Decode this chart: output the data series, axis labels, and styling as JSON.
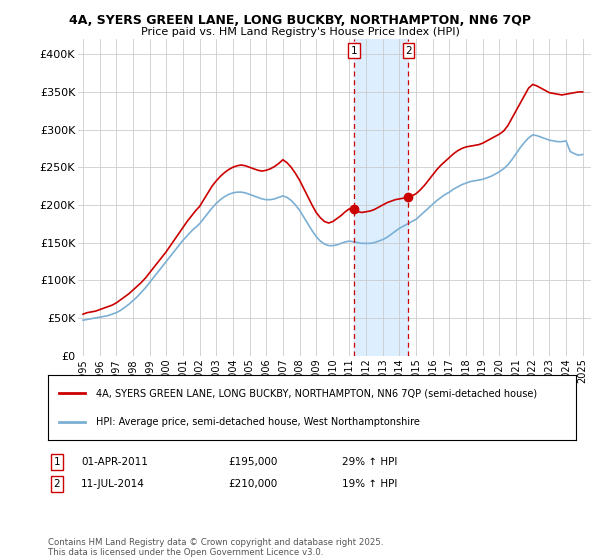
{
  "title1": "4A, SYERS GREEN LANE, LONG BUCKBY, NORTHAMPTON, NN6 7QP",
  "title2": "Price paid vs. HM Land Registry's House Price Index (HPI)",
  "red_label": "4A, SYERS GREEN LANE, LONG BUCKBY, NORTHAMPTON, NN6 7QP (semi-detached house)",
  "blue_label": "HPI: Average price, semi-detached house, West Northamptonshire",
  "footnote": "Contains HM Land Registry data © Crown copyright and database right 2025.\nThis data is licensed under the Open Government Licence v3.0.",
  "marker1_date": "01-APR-2011",
  "marker1_price": "£195,000",
  "marker1_pct": "29% ↑ HPI",
  "marker2_date": "11-JUL-2014",
  "marker2_price": "£210,000",
  "marker2_pct": "19% ↑ HPI",
  "marker1_x": 2011.25,
  "marker2_x": 2014.54,
  "marker1_y": 195000,
  "marker2_y": 210000,
  "ylim": [
    0,
    420000
  ],
  "xlim": [
    1994.7,
    2025.5
  ],
  "yticks": [
    0,
    50000,
    100000,
    150000,
    200000,
    250000,
    300000,
    350000,
    400000
  ],
  "ytick_labels": [
    "£0",
    "£50K",
    "£100K",
    "£150K",
    "£200K",
    "£250K",
    "£300K",
    "£350K",
    "£400K"
  ],
  "red_color": "#cc0000",
  "blue_color": "#7bafd4",
  "shade_color": "#ddeeff",
  "marker_line_color": "#cc0000",
  "background": "#ffffff",
  "grid_color": "#cccccc",
  "red_years": [
    1995.0,
    1995.25,
    1995.5,
    1995.75,
    1996.0,
    1996.25,
    1996.5,
    1996.75,
    1997.0,
    1997.25,
    1997.5,
    1997.75,
    1998.0,
    1998.25,
    1998.5,
    1998.75,
    1999.0,
    1999.25,
    1999.5,
    1999.75,
    2000.0,
    2000.25,
    2000.5,
    2000.75,
    2001.0,
    2001.25,
    2001.5,
    2001.75,
    2002.0,
    2002.25,
    2002.5,
    2002.75,
    2003.0,
    2003.25,
    2003.5,
    2003.75,
    2004.0,
    2004.25,
    2004.5,
    2004.75,
    2005.0,
    2005.25,
    2005.5,
    2005.75,
    2006.0,
    2006.25,
    2006.5,
    2006.75,
    2007.0,
    2007.25,
    2007.5,
    2007.75,
    2008.0,
    2008.25,
    2008.5,
    2008.75,
    2009.0,
    2009.25,
    2009.5,
    2009.75,
    2010.0,
    2010.25,
    2010.5,
    2010.75,
    2011.0,
    2011.25,
    2011.5,
    2011.75,
    2012.0,
    2012.25,
    2012.5,
    2012.75,
    2013.0,
    2013.25,
    2013.5,
    2013.75,
    2014.0,
    2014.25,
    2014.5,
    2014.75,
    2015.0,
    2015.25,
    2015.5,
    2015.75,
    2016.0,
    2016.25,
    2016.5,
    2016.75,
    2017.0,
    2017.25,
    2017.5,
    2017.75,
    2018.0,
    2018.25,
    2018.5,
    2018.75,
    2019.0,
    2019.25,
    2019.5,
    2019.75,
    2020.0,
    2020.25,
    2020.5,
    2020.75,
    2021.0,
    2021.25,
    2021.5,
    2021.75,
    2022.0,
    2022.25,
    2022.5,
    2022.75,
    2023.0,
    2023.25,
    2023.5,
    2023.75,
    2024.0,
    2024.25,
    2024.5,
    2024.75,
    2025.0
  ],
  "red_values": [
    55000,
    57000,
    58000,
    59000,
    61000,
    63000,
    65000,
    67000,
    70000,
    74000,
    78000,
    82000,
    87000,
    92000,
    97000,
    103000,
    110000,
    117000,
    124000,
    131000,
    138000,
    146000,
    154000,
    162000,
    170000,
    178000,
    185000,
    192000,
    198000,
    207000,
    216000,
    225000,
    232000,
    238000,
    243000,
    247000,
    250000,
    252000,
    253000,
    252000,
    250000,
    248000,
    246000,
    245000,
    246000,
    248000,
    251000,
    255000,
    260000,
    256000,
    250000,
    242000,
    233000,
    222000,
    211000,
    200000,
    190000,
    183000,
    178000,
    176000,
    178000,
    182000,
    186000,
    191000,
    195000,
    193000,
    191000,
    190000,
    191000,
    192000,
    194000,
    197000,
    200000,
    203000,
    205000,
    207000,
    208000,
    209000,
    210000,
    212000,
    215000,
    220000,
    226000,
    233000,
    240000,
    247000,
    253000,
    258000,
    263000,
    268000,
    272000,
    275000,
    277000,
    278000,
    279000,
    280000,
    282000,
    285000,
    288000,
    291000,
    294000,
    298000,
    305000,
    315000,
    325000,
    335000,
    345000,
    355000,
    360000,
    358000,
    355000,
    352000,
    349000,
    348000,
    347000,
    346000,
    347000,
    348000,
    349000,
    350000,
    350000
  ],
  "blue_years": [
    1995.0,
    1995.25,
    1995.5,
    1995.75,
    1996.0,
    1996.25,
    1996.5,
    1996.75,
    1997.0,
    1997.25,
    1997.5,
    1997.75,
    1998.0,
    1998.25,
    1998.5,
    1998.75,
    1999.0,
    1999.25,
    1999.5,
    1999.75,
    2000.0,
    2000.25,
    2000.5,
    2000.75,
    2001.0,
    2001.25,
    2001.5,
    2001.75,
    2002.0,
    2002.25,
    2002.5,
    2002.75,
    2003.0,
    2003.25,
    2003.5,
    2003.75,
    2004.0,
    2004.25,
    2004.5,
    2004.75,
    2005.0,
    2005.25,
    2005.5,
    2005.75,
    2006.0,
    2006.25,
    2006.5,
    2006.75,
    2007.0,
    2007.25,
    2007.5,
    2007.75,
    2008.0,
    2008.25,
    2008.5,
    2008.75,
    2009.0,
    2009.25,
    2009.5,
    2009.75,
    2010.0,
    2010.25,
    2010.5,
    2010.75,
    2011.0,
    2011.25,
    2011.5,
    2011.75,
    2012.0,
    2012.25,
    2012.5,
    2012.75,
    2013.0,
    2013.25,
    2013.5,
    2013.75,
    2014.0,
    2014.25,
    2014.5,
    2014.75,
    2015.0,
    2015.25,
    2015.5,
    2015.75,
    2016.0,
    2016.25,
    2016.5,
    2016.75,
    2017.0,
    2017.25,
    2017.5,
    2017.75,
    2018.0,
    2018.25,
    2018.5,
    2018.75,
    2019.0,
    2019.25,
    2019.5,
    2019.75,
    2020.0,
    2020.25,
    2020.5,
    2020.75,
    2021.0,
    2021.25,
    2021.5,
    2021.75,
    2022.0,
    2022.25,
    2022.5,
    2022.75,
    2023.0,
    2023.25,
    2023.5,
    2023.75,
    2024.0,
    2024.25,
    2024.5,
    2024.75,
    2025.0
  ],
  "blue_values": [
    47000,
    48000,
    49000,
    50000,
    51000,
    52000,
    53000,
    55000,
    57000,
    60000,
    64000,
    68000,
    73000,
    78000,
    84000,
    90000,
    97000,
    104000,
    111000,
    118000,
    125000,
    132000,
    139000,
    146000,
    153000,
    159000,
    165000,
    170000,
    175000,
    182000,
    189000,
    196000,
    202000,
    207000,
    211000,
    214000,
    216000,
    217000,
    217000,
    216000,
    214000,
    212000,
    210000,
    208000,
    207000,
    207000,
    208000,
    210000,
    212000,
    210000,
    206000,
    200000,
    193000,
    184000,
    175000,
    166000,
    158000,
    152000,
    148000,
    146000,
    146000,
    147000,
    149000,
    151000,
    152000,
    151000,
    150000,
    149000,
    149000,
    149000,
    150000,
    152000,
    154000,
    157000,
    161000,
    165000,
    169000,
    172000,
    175000,
    178000,
    181000,
    186000,
    191000,
    196000,
    201000,
    206000,
    210000,
    214000,
    217000,
    221000,
    224000,
    227000,
    229000,
    231000,
    232000,
    233000,
    234000,
    236000,
    238000,
    241000,
    244000,
    248000,
    253000,
    260000,
    268000,
    276000,
    283000,
    289000,
    293000,
    292000,
    290000,
    288000,
    286000,
    285000,
    284000,
    284000,
    285000,
    271000,
    268000,
    266000,
    267000
  ]
}
